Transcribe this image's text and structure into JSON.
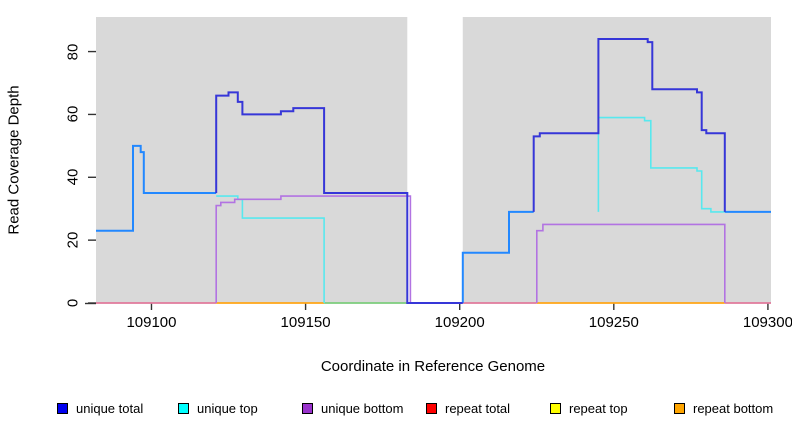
{
  "chart_data": {
    "type": "line",
    "step": true,
    "title": "",
    "xlabel": "Coordinate in Reference Genome",
    "ylabel": "Read Coverage Depth",
    "xlim": [
      109082,
      109301
    ],
    "ylim": [
      0,
      91
    ],
    "x_ticks": [
      109100,
      109150,
      109200,
      109250,
      109300
    ],
    "y_ticks": [
      0,
      20,
      40,
      60,
      80
    ],
    "grid": false,
    "plot_background": "#d9d9d9",
    "no_data_gap": {
      "x_start": 109183,
      "x_end": 109201
    },
    "legend_position": "bottom",
    "legend": [
      {
        "label": "unique total",
        "color": "#0000f0"
      },
      {
        "label": "unique top",
        "color": "#00ffff"
      },
      {
        "label": "unique bottom",
        "color": "#9932cc"
      },
      {
        "label": "repeat total",
        "color": "#ff0000"
      },
      {
        "label": "repeat top",
        "color": "#ffff00"
      },
      {
        "label": "repeat bottom",
        "color": "#ffa500"
      }
    ],
    "series": [
      {
        "name": "repeat-total-baseline",
        "color": "#e0799b",
        "width": 1.7,
        "paths": [
          [
            [
              109082,
              0
            ],
            [
              109121,
              0
            ]
          ],
          [
            [
              109201,
              0
            ],
            [
              109225,
              0
            ]
          ],
          [
            [
              109286,
              0
            ],
            [
              109301,
              0
            ]
          ]
        ]
      },
      {
        "name": "repeat-bottom-baseline",
        "color": "#ffa516",
        "width": 1.7,
        "paths": [
          [
            [
              109121,
              0
            ],
            [
              109156,
              0
            ]
          ],
          [
            [
              109225,
              0
            ],
            [
              109286,
              0
            ]
          ]
        ]
      },
      {
        "name": "baseline-green-segment",
        "color": "#7ccd7c",
        "width": 1.7,
        "paths": [
          [
            [
              109156,
              0
            ],
            [
              109183,
              0
            ]
          ]
        ]
      },
      {
        "name": "unique-top-line",
        "color": "#58e8ee",
        "width": 1.6,
        "paths": [
          [
            [
              109121,
              34
            ],
            [
              109128,
              34
            ],
            [
              109128,
              33
            ],
            [
              109129.5,
              33
            ],
            [
              109129.5,
              27
            ],
            [
              109156,
              27
            ],
            [
              109156,
              0
            ]
          ],
          [
            [
              109245,
              29
            ],
            [
              109245,
              59
            ],
            [
              109260,
              59
            ],
            [
              109260,
              58
            ],
            [
              109262,
              58
            ],
            [
              109262,
              43
            ],
            [
              109277,
              43
            ],
            [
              109277,
              42
            ],
            [
              109278.5,
              42
            ],
            [
              109278.5,
              30
            ],
            [
              109281.5,
              30
            ],
            [
              109281.5,
              29
            ],
            [
              109286,
              29
            ]
          ]
        ]
      },
      {
        "name": "unique-bottom-line",
        "color": "#b273e2",
        "width": 1.6,
        "paths": [
          [
            [
              109121,
              0
            ],
            [
              109121,
              31
            ],
            [
              109122.5,
              31
            ],
            [
              109122.5,
              32
            ],
            [
              109127,
              32
            ],
            [
              109127,
              33
            ],
            [
              109142,
              33
            ],
            [
              109142,
              34
            ],
            [
              109184,
              34
            ],
            [
              109184,
              0
            ]
          ],
          [
            [
              109225,
              0
            ],
            [
              109225,
              23
            ],
            [
              109227,
              23
            ],
            [
              109227,
              25
            ],
            [
              109286,
              25
            ],
            [
              109286,
              0
            ]
          ]
        ]
      },
      {
        "name": "total-coverage-light-line",
        "color": "#2288ff",
        "width": 2,
        "paths": [
          [
            [
              109082,
              23
            ],
            [
              109094,
              23
            ],
            [
              109094,
              50
            ],
            [
              109096.5,
              50
            ],
            [
              109096.5,
              48
            ],
            [
              109097.5,
              48
            ],
            [
              109097.5,
              35
            ],
            [
              109121,
              35
            ]
          ],
          [
            [
              109201,
              0
            ],
            [
              109201,
              16
            ],
            [
              109216,
              16
            ],
            [
              109216,
              29
            ],
            [
              109224,
              29
            ]
          ],
          [
            [
              109286,
              29
            ],
            [
              109301,
              29
            ]
          ]
        ]
      },
      {
        "name": "unique-total-line",
        "color": "#3636d8",
        "width": 2,
        "paths": [
          [
            [
              109121,
              35
            ],
            [
              109121,
              66
            ],
            [
              109125,
              66
            ],
            [
              109125,
              67
            ],
            [
              109128,
              67
            ],
            [
              109128,
              64
            ],
            [
              109129.5,
              64
            ],
            [
              109129.5,
              60
            ],
            [
              109142,
              60
            ],
            [
              109142,
              61
            ],
            [
              109146,
              61
            ],
            [
              109146,
              62
            ],
            [
              109156,
              62
            ],
            [
              109156,
              35
            ],
            [
              109183,
              35
            ],
            [
              109183,
              0
            ],
            [
              109201,
              0
            ]
          ],
          [
            [
              109224,
              29
            ],
            [
              109224,
              53
            ],
            [
              109226,
              53
            ],
            [
              109226,
              54
            ],
            [
              109245,
              54
            ],
            [
              109245,
              84
            ],
            [
              109261,
              84
            ],
            [
              109261,
              83
            ],
            [
              109262.5,
              83
            ],
            [
              109262.5,
              68
            ],
            [
              109277,
              68
            ],
            [
              109277,
              67
            ],
            [
              109278.5,
              67
            ],
            [
              109278.5,
              55
            ],
            [
              109280,
              55
            ],
            [
              109280,
              54
            ],
            [
              109286,
              54
            ],
            [
              109286,
              29
            ]
          ]
        ]
      }
    ]
  }
}
